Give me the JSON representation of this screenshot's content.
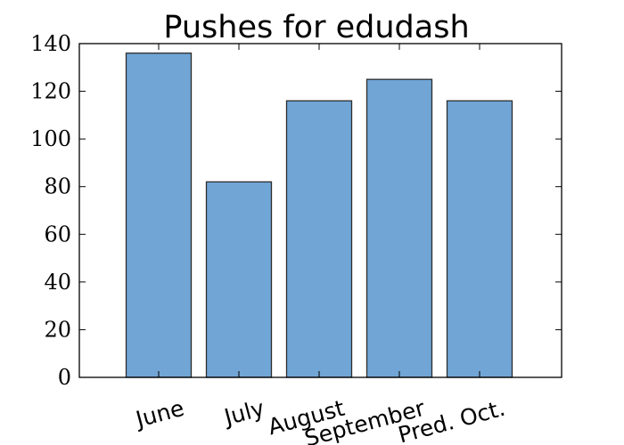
{
  "chart_data": {
    "type": "bar",
    "title": "Pushes for edudash",
    "xlabel": "",
    "ylabel": "",
    "categories": [
      "June",
      "July",
      "August",
      "September",
      "Pred. Oct."
    ],
    "values": [
      136,
      82,
      116,
      125,
      116
    ],
    "ylim": [
      0,
      140
    ],
    "yticks": [
      "0",
      "20",
      "40",
      "60",
      "80",
      "100",
      "120",
      "140"
    ],
    "grid": false,
    "legend": "none",
    "bar_color": "#70a5d5",
    "edge_color": "#2d2d2d"
  }
}
